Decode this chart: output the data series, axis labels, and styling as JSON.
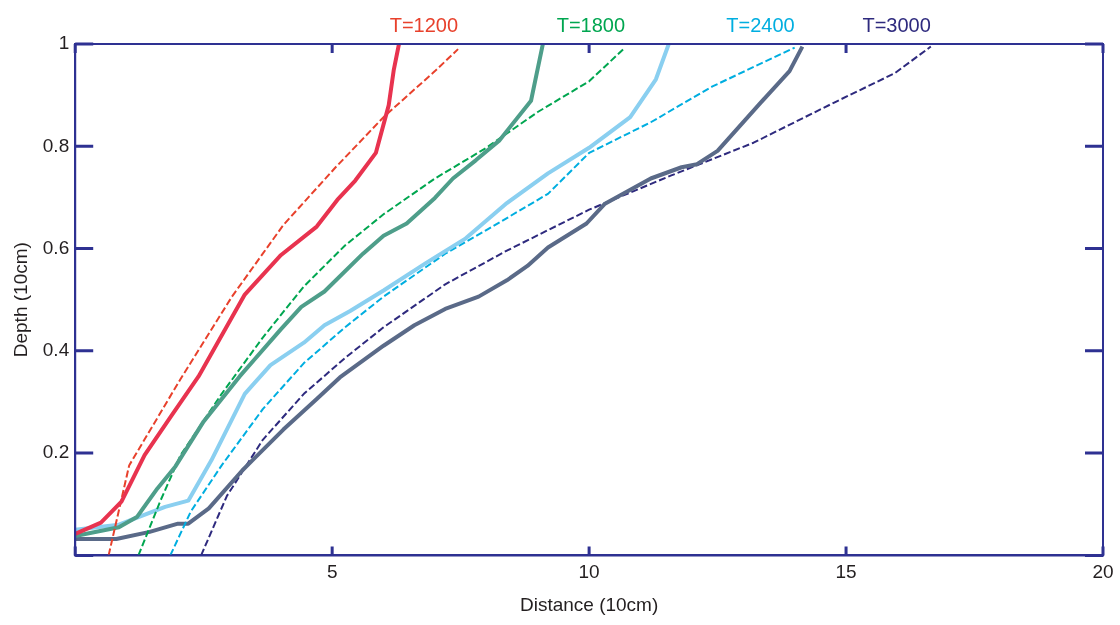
{
  "chart_data": {
    "type": "line",
    "xlabel": "Distance (10cm)",
    "ylabel": "Depth (10cm)",
    "xlim": [
      0,
      20
    ],
    "ylim": [
      0,
      1
    ],
    "xticks": [
      {
        "value": 0,
        "label": null
      },
      5,
      10,
      15,
      20
    ],
    "yticks": [
      {
        "value": 0,
        "label": null
      },
      0.2,
      0.4,
      0.6,
      0.8,
      1
    ],
    "grid": false,
    "legend": false,
    "marker": "none",
    "series": [
      {
        "color": "#e8334f",
        "line_style": "solid",
        "x": [
          0,
          0.5,
          0.9,
          1.35,
          1.85,
          2.4,
          3.3,
          4.0,
          4.7,
          5.1,
          5.45,
          5.85,
          6.1,
          6.2,
          6.3
        ],
        "values": [
          0.042,
          0.064,
          0.105,
          0.196,
          0.27,
          0.35,
          0.51,
          0.587,
          0.643,
          0.695,
          0.733,
          0.787,
          0.88,
          0.95,
          1.0
        ]
      },
      {
        "name": "T=1200",
        "color": "#e8412c",
        "line_style": "dashed",
        "x": [
          0.65,
          1.05,
          2.05,
          3.05,
          4.05,
          5.05,
          6.0,
          7.0,
          7.45
        ],
        "values": [
          0,
          0.176,
          0.345,
          0.506,
          0.646,
          0.757,
          0.857,
          0.947,
          0.99
        ]
      },
      {
        "color": "#4e9e8a",
        "line_style": "solid",
        "x": [
          0,
          0.85,
          1.2,
          1.6,
          1.95,
          2.5,
          3.2,
          4.0,
          4.4,
          4.85,
          5.6,
          6.0,
          6.45,
          7.0,
          7.35,
          7.8,
          8.25,
          8.87,
          9.1
        ],
        "values": [
          0.038,
          0.055,
          0.075,
          0.131,
          0.174,
          0.262,
          0.35,
          0.442,
          0.486,
          0.516,
          0.59,
          0.625,
          0.649,
          0.699,
          0.737,
          0.773,
          0.811,
          0.889,
          1.0
        ]
      },
      {
        "name": "T=1800",
        "color": "#00a650",
        "line_style": "dashed",
        "x": [
          1.23,
          1.65,
          2.05,
          2.85,
          3.65,
          4.45,
          5.25,
          6.0,
          7.0,
          8.0,
          9.0,
          10.0,
          10.7
        ],
        "values": [
          0,
          0.105,
          0.196,
          0.316,
          0.426,
          0.526,
          0.606,
          0.667,
          0.737,
          0.797,
          0.867,
          0.927,
          0.993
        ]
      },
      {
        "color": "#8acff0",
        "line_style": "solid",
        "x": [
          0,
          0.85,
          1.75,
          2.2,
          2.65,
          3.3,
          3.8,
          4.45,
          4.85,
          5.35,
          6.0,
          6.8,
          7.6,
          8.4,
          9.2,
          10.0,
          10.8,
          11.3,
          11.55
        ],
        "values": [
          0.05,
          0.06,
          0.095,
          0.107,
          0.186,
          0.316,
          0.372,
          0.416,
          0.45,
          0.478,
          0.518,
          0.57,
          0.62,
          0.689,
          0.747,
          0.797,
          0.857,
          0.931,
          1.0
        ]
      },
      {
        "name": "T=2400",
        "color": "#00aee0",
        "line_style": "dashed",
        "x": [
          1.85,
          2.25,
          2.85,
          3.65,
          4.45,
          5.25,
          6.0,
          7.2,
          8.0,
          9.2,
          10.0,
          11.2,
          12.4,
          14.0
        ],
        "values": [
          0,
          0.086,
          0.176,
          0.286,
          0.376,
          0.446,
          0.506,
          0.59,
          0.636,
          0.707,
          0.787,
          0.847,
          0.917,
          0.993
        ]
      },
      {
        "color": "#5a6a88",
        "line_style": "solid",
        "x": [
          0,
          0.8,
          1.45,
          2.0,
          2.2,
          2.6,
          3.25,
          4.05,
          4.7,
          5.15,
          6.0,
          6.6,
          7.2,
          7.85,
          8.4,
          8.8,
          9.2,
          9.95,
          10.3,
          11.2,
          11.8,
          12.1,
          12.5,
          13.3,
          13.9,
          14.15
        ],
        "values": [
          0.032,
          0.032,
          0.046,
          0.062,
          0.062,
          0.092,
          0.166,
          0.246,
          0.306,
          0.348,
          0.41,
          0.45,
          0.482,
          0.506,
          0.538,
          0.566,
          0.602,
          0.649,
          0.687,
          0.737,
          0.759,
          0.765,
          0.791,
          0.881,
          0.947,
          0.995
        ]
      },
      {
        "name": "T=3000",
        "color": "#2e2a7e",
        "line_style": "dashed",
        "x": [
          2.45,
          2.95,
          3.65,
          4.45,
          5.25,
          6.0,
          7.2,
          8.4,
          10.0,
          11.6,
          13.2,
          14.8,
          15.95,
          16.65
        ],
        "values": [
          0,
          0.116,
          0.226,
          0.316,
          0.386,
          0.446,
          0.53,
          0.596,
          0.676,
          0.743,
          0.807,
          0.887,
          0.943,
          0.995
        ]
      }
    ]
  }
}
